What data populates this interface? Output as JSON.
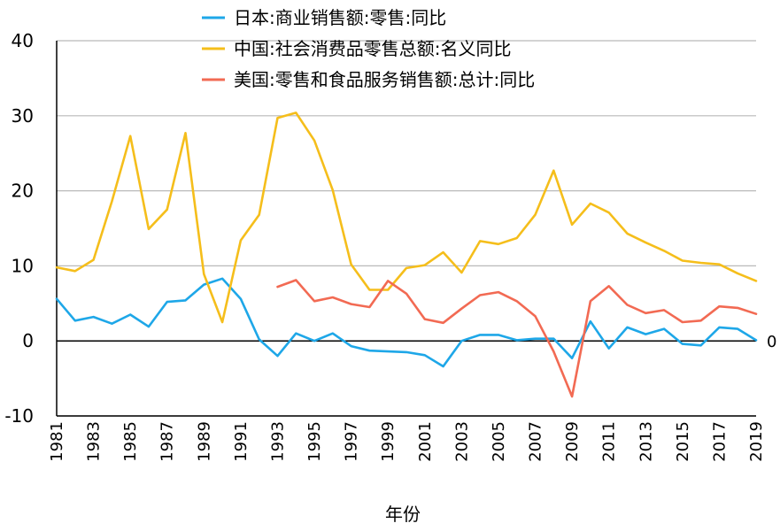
{
  "chart_data": {
    "type": "line",
    "title": "",
    "xlabel": "年份",
    "ylabel": "",
    "ylim": [
      -10,
      40
    ],
    "yticks": [
      -10,
      0,
      10,
      20,
      30,
      40
    ],
    "xlim": [
      1981,
      2019
    ],
    "xticks": [
      1981,
      1983,
      1985,
      1987,
      1989,
      1991,
      1993,
      1995,
      1997,
      1999,
      2001,
      2003,
      2005,
      2007,
      2009,
      2011,
      2013,
      2015,
      2017,
      2019
    ],
    "grid": true,
    "legend_position": "top",
    "end_label": "0",
    "series": [
      {
        "name": "日本:商业销售额:零售:同比",
        "color": "#1ea7e8",
        "x": [
          1981,
          1982,
          1983,
          1984,
          1985,
          1986,
          1987,
          1988,
          1989,
          1990,
          1991,
          1992,
          1993,
          1994,
          1995,
          1996,
          1997,
          1998,
          1999,
          2000,
          2001,
          2002,
          2003,
          2004,
          2005,
          2006,
          2007,
          2008,
          2009,
          2010,
          2011,
          2012,
          2013,
          2014,
          2015,
          2016,
          2017,
          2018,
          2019
        ],
        "values": [
          5.6,
          2.7,
          3.2,
          2.3,
          3.5,
          1.9,
          5.2,
          5.4,
          7.5,
          8.3,
          5.6,
          0.2,
          -2.0,
          1.0,
          0.0,
          1.0,
          -0.7,
          -1.3,
          -1.4,
          -1.5,
          -1.9,
          -3.4,
          0.0,
          0.8,
          0.8,
          0.1,
          0.3,
          0.3,
          -2.3,
          2.6,
          -1.0,
          1.8,
          0.9,
          1.6,
          -0.4,
          -0.6,
          1.8,
          1.6,
          0.1
        ]
      },
      {
        "name": "中国:社会消费品零售总额:名义同比",
        "color": "#f5be1b",
        "x": [
          1981,
          1982,
          1983,
          1984,
          1985,
          1986,
          1987,
          1988,
          1989,
          1990,
          1991,
          1992,
          1993,
          1994,
          1995,
          1996,
          1997,
          1998,
          1999,
          2000,
          2001,
          2002,
          2003,
          2004,
          2005,
          2006,
          2007,
          2008,
          2009,
          2010,
          2011,
          2012,
          2013,
          2014,
          2015,
          2016,
          2017,
          2018,
          2019
        ],
        "values": [
          9.8,
          9.3,
          10.8,
          18.6,
          27.3,
          14.9,
          17.5,
          27.7,
          8.9,
          2.5,
          13.4,
          16.8,
          29.7,
          30.4,
          26.7,
          20.1,
          10.2,
          6.8,
          6.8,
          9.7,
          10.1,
          11.8,
          9.1,
          13.3,
          12.9,
          13.7,
          16.8,
          22.7,
          15.5,
          18.3,
          17.1,
          14.3,
          13.1,
          12.0,
          10.7,
          10.4,
          10.2,
          9.0,
          8.0
        ]
      },
      {
        "name": "美国:零售和食品服务销售额:总计:同比",
        "color": "#f26a53",
        "x": [
          1993,
          1994,
          1995,
          1996,
          1997,
          1998,
          1999,
          2000,
          2001,
          2002,
          2003,
          2004,
          2005,
          2006,
          2007,
          2008,
          2009,
          2010,
          2011,
          2012,
          2013,
          2014,
          2015,
          2016,
          2017,
          2018,
          2019
        ],
        "values": [
          7.2,
          8.1,
          5.3,
          5.8,
          4.9,
          4.5,
          8.0,
          6.3,
          2.9,
          2.4,
          4.3,
          6.1,
          6.5,
          5.3,
          3.3,
          -1.4,
          -7.4,
          5.3,
          7.3,
          4.8,
          3.7,
          4.1,
          2.5,
          2.7,
          4.6,
          4.4,
          3.6
        ]
      }
    ]
  }
}
